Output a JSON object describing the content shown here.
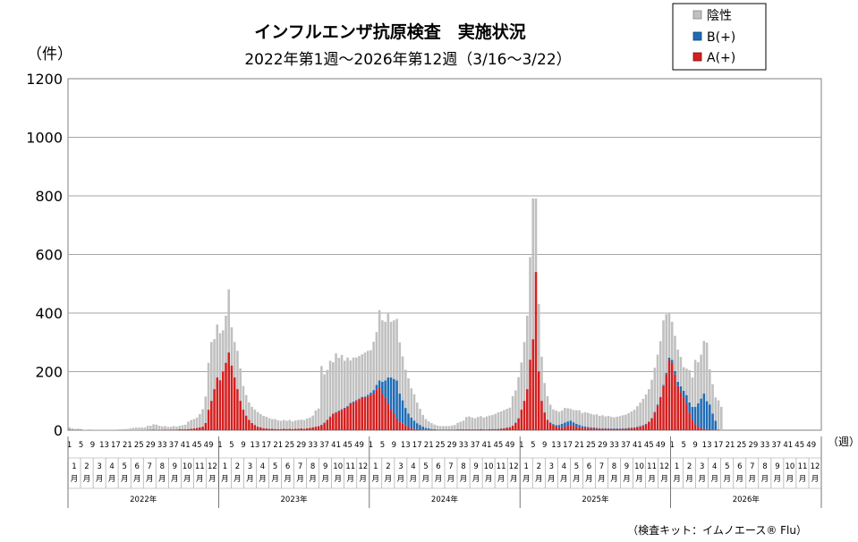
{
  "chart_data": {
    "type": "bar",
    "stacked": true,
    "title": "インフルエンザ抗原検査　実施状況",
    "subtitle": "2022年第1週～2026年第12週（3/16～3/22）",
    "ylabel": "（件）",
    "xlabel": "（週）",
    "note": "（検査キット：イムノエース® Flu）",
    "ylim": [
      0,
      1200
    ],
    "yticks": [
      "0",
      "200",
      "400",
      "600",
      "800",
      "1000",
      "1200"
    ],
    "grid": true,
    "legend_position": "top-right",
    "series": [
      {
        "name": "陰性",
        "color": "#c0c0c0"
      },
      {
        "name": "B(+)",
        "color": "#1f6cb5"
      },
      {
        "name": "A(+)",
        "color": "#d42020"
      }
    ],
    "week_labels": [
      "1",
      "5",
      "9",
      "13",
      "17",
      "21",
      "25",
      "29",
      "33",
      "37",
      "41",
      "45",
      "49"
    ],
    "month_labels": [
      "1月",
      "2月",
      "3月",
      "4月",
      "5月",
      "6月",
      "7月",
      "8月",
      "9月",
      "10月",
      "11月",
      "12月"
    ],
    "years": [
      "2022年",
      "2023年",
      "2024年",
      "2025年",
      "2026年"
    ],
    "x_categories": "weekly, 2022 week 1 to 2026 week 52",
    "a_positive": [
      2,
      1,
      1,
      1,
      1,
      0,
      0,
      0,
      0,
      0,
      0,
      0,
      0,
      0,
      0,
      0,
      0,
      0,
      0,
      0,
      0,
      0,
      0,
      0,
      0,
      0,
      0,
      1,
      1,
      2,
      1,
      1,
      1,
      2,
      1,
      2,
      2,
      2,
      3,
      3,
      3,
      4,
      5,
      6,
      8,
      10,
      12,
      25,
      70,
      100,
      140,
      180,
      170,
      200,
      230,
      265,
      220,
      180,
      140,
      100,
      70,
      50,
      35,
      25,
      18,
      12,
      10,
      7,
      6,
      5,
      5,
      4,
      4,
      4,
      5,
      4,
      5,
      4,
      5,
      5,
      6,
      5,
      7,
      8,
      10,
      12,
      14,
      18,
      25,
      35,
      45,
      55,
      60,
      65,
      70,
      75,
      80,
      90,
      95,
      100,
      105,
      110,
      110,
      115,
      120,
      125,
      140,
      145,
      125,
      110,
      90,
      70,
      55,
      40,
      30,
      22,
      16,
      12,
      8,
      5,
      4,
      3,
      2,
      2,
      2,
      1,
      1,
      1,
      1,
      1,
      1,
      1,
      1,
      1,
      2,
      2,
      2,
      2,
      2,
      2,
      2,
      2,
      3,
      2,
      2,
      3,
      3,
      3,
      4,
      5,
      6,
      8,
      10,
      15,
      25,
      40,
      70,
      100,
      140,
      240,
      310,
      540,
      200,
      100,
      60,
      35,
      25,
      18,
      12,
      10,
      10,
      12,
      15,
      18,
      15,
      12,
      10,
      8,
      8,
      7,
      7,
      6,
      6,
      5,
      5,
      5,
      5,
      4,
      4,
      4,
      4,
      5,
      5,
      6,
      7,
      8,
      10,
      12,
      15,
      20,
      28,
      40,
      60,
      85,
      110,
      150,
      190,
      240,
      230,
      190,
      150,
      130,
      110,
      90,
      60,
      35,
      20,
      12,
      8,
      5,
      4,
      3,
      2,
      2,
      2
    ],
    "b_positive": [
      0,
      0,
      0,
      0,
      0,
      0,
      0,
      0,
      0,
      0,
      0,
      0,
      0,
      0,
      0,
      0,
      0,
      0,
      0,
      0,
      0,
      0,
      0,
      0,
      0,
      0,
      0,
      0,
      0,
      0,
      0,
      0,
      0,
      0,
      0,
      0,
      0,
      0,
      0,
      0,
      0,
      0,
      0,
      0,
      0,
      0,
      0,
      0,
      0,
      1,
      1,
      1,
      1,
      1,
      1,
      1,
      1,
      1,
      1,
      1,
      1,
      0,
      0,
      0,
      0,
      0,
      0,
      0,
      0,
      0,
      0,
      0,
      0,
      0,
      0,
      0,
      0,
      0,
      0,
      0,
      0,
      0,
      0,
      0,
      0,
      0,
      0,
      1,
      1,
      1,
      2,
      2,
      2,
      2,
      2,
      2,
      3,
      3,
      3,
      3,
      3,
      4,
      5,
      6,
      8,
      12,
      15,
      25,
      40,
      60,
      90,
      110,
      120,
      130,
      95,
      80,
      60,
      45,
      35,
      28,
      20,
      15,
      10,
      6,
      4,
      3,
      2,
      1,
      1,
      1,
      1,
      1,
      1,
      1,
      1,
      1,
      1,
      1,
      1,
      1,
      1,
      1,
      1,
      1,
      1,
      1,
      1,
      1,
      1,
      1,
      1,
      1,
      1,
      1,
      1,
      1,
      1,
      1,
      1,
      1,
      1,
      1,
      1,
      1,
      1,
      1,
      2,
      3,
      5,
      8,
      12,
      14,
      15,
      15,
      12,
      10,
      8,
      6,
      5,
      4,
      3,
      3,
      2,
      2,
      2,
      2,
      2,
      2,
      2,
      2,
      2,
      2,
      2,
      2,
      2,
      2,
      2,
      2,
      2,
      2,
      2,
      2,
      3,
      3,
      4,
      5,
      6,
      8,
      10,
      12,
      15,
      20,
      25,
      30,
      35,
      45,
      60,
      80,
      100,
      120,
      95,
      85,
      55,
      30
    ],
    "negative": [
      8,
      5,
      3,
      4,
      3,
      2,
      2,
      3,
      2,
      2,
      2,
      2,
      2,
      2,
      2,
      2,
      2,
      3,
      3,
      4,
      4,
      6,
      8,
      9,
      9,
      9,
      9,
      14,
      14,
      18,
      18,
      14,
      12,
      12,
      10,
      10,
      12,
      10,
      12,
      14,
      16,
      25,
      30,
      32,
      35,
      45,
      60,
      90,
      160,
      200,
      170,
      180,
      160,
      140,
      160,
      215,
      130,
      120,
      130,
      110,
      80,
      70,
      60,
      55,
      52,
      50,
      45,
      42,
      40,
      36,
      33,
      34,
      30,
      28,
      30,
      28,
      30,
      26,
      28,
      30,
      30,
      30,
      33,
      35,
      40,
      55,
      60,
      200,
      165,
      170,
      190,
      175,
      200,
      180,
      185,
      160,
      165,
      145,
      150,
      145,
      145,
      145,
      150,
      150,
      145,
      165,
      180,
      240,
      210,
      200,
      220,
      190,
      200,
      210,
      175,
      150,
      130,
      120,
      100,
      90,
      70,
      55,
      40,
      30,
      24,
      20,
      16,
      14,
      12,
      12,
      12,
      12,
      14,
      16,
      22,
      26,
      30,
      42,
      44,
      40,
      38,
      42,
      44,
      40,
      44,
      46,
      48,
      52,
      56,
      58,
      62,
      64,
      66,
      100,
      110,
      140,
      160,
      200,
      250,
      350,
      480,
      250,
      230,
      150,
      100,
      80,
      60,
      50,
      50,
      45,
      45,
      50,
      45,
      40,
      42,
      46,
      50,
      45,
      48,
      48,
      46,
      44,
      46,
      42,
      44,
      40,
      42,
      40,
      38,
      40,
      42,
      44,
      46,
      50,
      55,
      60,
      70,
      80,
      90,
      100,
      110,
      130,
      150,
      170,
      190,
      220,
      200,
      150,
      130,
      120,
      110,
      100,
      80,
      90,
      110,
      100,
      160,
      140,
      150,
      180,
      200,
      120,
      100,
      80,
      100,
      80
    ]
  }
}
